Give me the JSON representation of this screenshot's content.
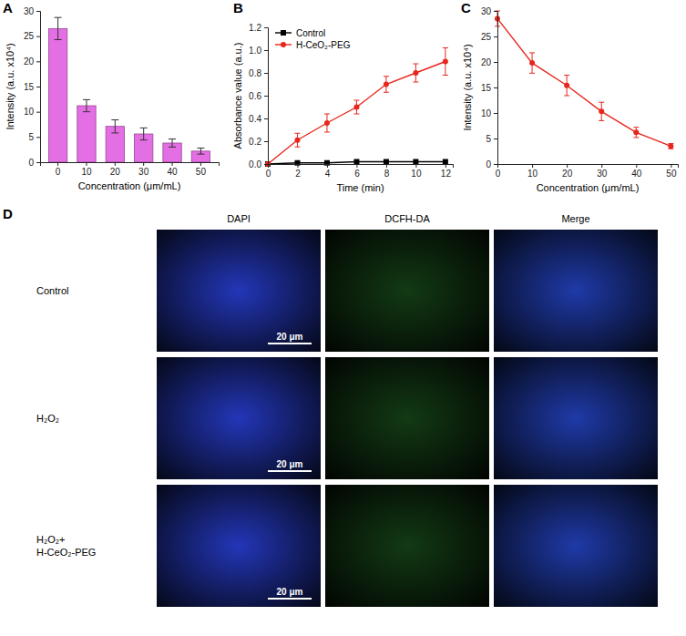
{
  "chart_data": [
    {
      "type": "bar",
      "title": "A",
      "x_label": "Concentration (μm/mL)",
      "y_label": "Intensity (a.u. x10⁴)",
      "categories": [
        "0",
        "10",
        "20",
        "30",
        "40",
        "50"
      ],
      "values": [
        26.5,
        11.2,
        7.1,
        5.6,
        3.8,
        2.2
      ],
      "errors": [
        2.2,
        1.2,
        1.3,
        1.2,
        0.8,
        0.6
      ],
      "color": "#e46ee4",
      "ylim": [
        0,
        30
      ],
      "yticks": [
        0,
        5,
        10,
        15,
        20,
        25,
        30
      ]
    },
    {
      "type": "line",
      "title": "B",
      "x_label": "Time (min)",
      "y_label": "Absorbance value (a.u.)",
      "x": [
        0,
        2,
        4,
        6,
        8,
        10,
        12
      ],
      "series": [
        {
          "name": "Control",
          "color": "#000000",
          "marker": "square",
          "values": [
            0.0,
            0.01,
            0.01,
            0.02,
            0.02,
            0.02,
            0.02
          ]
        },
        {
          "name": "H-CeO₂-PEG",
          "color": "#e8261c",
          "marker": "circle",
          "values": [
            0.0,
            0.21,
            0.36,
            0.5,
            0.7,
            0.8,
            0.9
          ],
          "errors": [
            0.0,
            0.06,
            0.08,
            0.06,
            0.07,
            0.08,
            0.12
          ]
        }
      ],
      "xlim": [
        0,
        12.5
      ],
      "xticks": [
        0,
        2,
        4,
        6,
        8,
        10,
        12
      ],
      "ylim": [
        0,
        1.2
      ],
      "yticks": [
        {
          "value": 0,
          "label": "0.0"
        },
        {
          "value": 0.2,
          "label": "0.2"
        },
        {
          "value": 0.4,
          "label": "0.4"
        },
        {
          "value": 0.6,
          "label": "0.6"
        },
        {
          "value": 0.8,
          "label": "0.8"
        },
        {
          "value": 1.0,
          "label": "1.0"
        },
        {
          "value": 1.2,
          "label": "1.2"
        }
      ],
      "legend": "top-left"
    },
    {
      "type": "line",
      "title": "C",
      "x_label": "Concentration (μm/mL)",
      "y_label": "Intensity (a.u. x10⁴)",
      "x": [
        0,
        10,
        20,
        30,
        40,
        50
      ],
      "series": [
        {
          "color": "#e8261c",
          "marker": "circle",
          "values": [
            28.5,
            19.8,
            15.4,
            10.3,
            6.2,
            3.5
          ],
          "errors": [
            1.5,
            2.0,
            2.0,
            1.8,
            1.0,
            0.5
          ]
        }
      ],
      "xlim": [
        0,
        52
      ],
      "xticks": [
        0,
        10,
        20,
        30,
        40,
        50
      ],
      "ylim": [
        0,
        30
      ],
      "yticks": [
        0,
        5,
        10,
        15,
        20,
        25,
        30
      ]
    }
  ],
  "image_panel": {
    "title": "D",
    "columns": [
      "DAPI",
      "DCFH-DA",
      "Merge"
    ],
    "rows": [
      [
        "Control"
      ],
      [
        "H₂O₂"
      ],
      [
        "H₂O₂+",
        "H-CeO₂-PEG"
      ]
    ],
    "scale_bar": "20 μm"
  }
}
